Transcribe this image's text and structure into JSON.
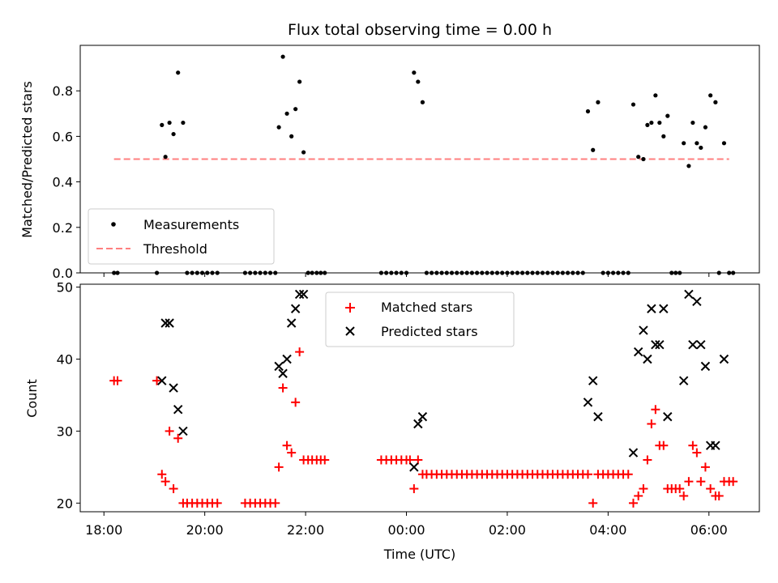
{
  "colors": {
    "measurement": "#000000",
    "threshold": "#ff7f7f",
    "matched": "#ff0000",
    "predicted": "#000000",
    "axis": "#000000"
  },
  "chart_data": [
    {
      "type": "scatter",
      "title": "Flux total observing time = 0.00 h",
      "xlabel": "",
      "ylabel": "Matched/Predicted stars",
      "x_unit": "hours since 18:00 UTC",
      "xlim": [
        -0.47,
        13.0
      ],
      "ylim": [
        0.0,
        1.0
      ],
      "yticks": [
        0.0,
        0.2,
        0.4,
        0.6,
        0.8
      ],
      "ytick_labels": [
        "0.0",
        "0.2",
        "0.4",
        "0.6",
        "0.8"
      ],
      "grid": false,
      "legend": {
        "position": "lower-left",
        "entries": [
          {
            "label": "Measurements",
            "marker": "dot"
          },
          {
            "label": "Threshold",
            "marker": "dashed-line"
          }
        ]
      },
      "threshold": {
        "y": 0.5,
        "x_range": [
          0.2,
          12.4
        ]
      },
      "series": [
        {
          "name": "Measurements",
          "points": [
            [
              0.2,
              0.0
            ],
            [
              0.27,
              0.0
            ],
            [
              1.05,
              0.0
            ],
            [
              1.15,
              0.65
            ],
            [
              1.22,
              0.51
            ],
            [
              1.3,
              0.66
            ],
            [
              1.38,
              0.61
            ],
            [
              1.47,
              0.88
            ],
            [
              1.57,
              0.66
            ],
            [
              1.65,
              0.0
            ],
            [
              1.75,
              0.0
            ],
            [
              1.85,
              0.0
            ],
            [
              1.95,
              0.0
            ],
            [
              2.05,
              0.0
            ],
            [
              2.15,
              0.0
            ],
            [
              2.25,
              0.0
            ],
            [
              2.8,
              0.0
            ],
            [
              2.9,
              0.0
            ],
            [
              3.0,
              0.0
            ],
            [
              3.1,
              0.0
            ],
            [
              3.2,
              0.0
            ],
            [
              3.3,
              0.0
            ],
            [
              3.4,
              0.0
            ],
            [
              3.47,
              0.64
            ],
            [
              3.55,
              0.95
            ],
            [
              3.63,
              0.7
            ],
            [
              3.72,
              0.6
            ],
            [
              3.8,
              0.72
            ],
            [
              3.88,
              0.84
            ],
            [
              3.96,
              0.53
            ],
            [
              4.05,
              0.0
            ],
            [
              4.13,
              0.0
            ],
            [
              4.22,
              0.0
            ],
            [
              4.3,
              0.0
            ],
            [
              4.38,
              0.0
            ],
            [
              5.5,
              0.0
            ],
            [
              5.6,
              0.0
            ],
            [
              5.7,
              0.0
            ],
            [
              5.8,
              0.0
            ],
            [
              5.9,
              0.0
            ],
            [
              6.0,
              0.0
            ],
            [
              6.15,
              0.88
            ],
            [
              6.23,
              0.84
            ],
            [
              6.32,
              0.75
            ],
            [
              6.4,
              0.0
            ],
            [
              6.5,
              0.0
            ],
            [
              6.6,
              0.0
            ],
            [
              6.7,
              0.0
            ],
            [
              6.8,
              0.0
            ],
            [
              6.9,
              0.0
            ],
            [
              7.0,
              0.0
            ],
            [
              7.1,
              0.0
            ],
            [
              7.2,
              0.0
            ],
            [
              7.3,
              0.0
            ],
            [
              7.4,
              0.0
            ],
            [
              7.5,
              0.0
            ],
            [
              7.6,
              0.0
            ],
            [
              7.7,
              0.0
            ],
            [
              7.8,
              0.0
            ],
            [
              7.9,
              0.0
            ],
            [
              8.0,
              0.0
            ],
            [
              8.1,
              0.0
            ],
            [
              8.2,
              0.0
            ],
            [
              8.3,
              0.0
            ],
            [
              8.4,
              0.0
            ],
            [
              8.5,
              0.0
            ],
            [
              8.6,
              0.0
            ],
            [
              8.7,
              0.0
            ],
            [
              8.8,
              0.0
            ],
            [
              8.9,
              0.0
            ],
            [
              9.0,
              0.0
            ],
            [
              9.1,
              0.0
            ],
            [
              9.2,
              0.0
            ],
            [
              9.3,
              0.0
            ],
            [
              9.4,
              0.0
            ],
            [
              9.5,
              0.0
            ],
            [
              9.6,
              0.71
            ],
            [
              9.7,
              0.54
            ],
            [
              9.8,
              0.75
            ],
            [
              9.9,
              0.0
            ],
            [
              10.0,
              0.0
            ],
            [
              10.1,
              0.0
            ],
            [
              10.2,
              0.0
            ],
            [
              10.3,
              0.0
            ],
            [
              10.4,
              0.0
            ],
            [
              10.5,
              0.74
            ],
            [
              10.6,
              0.51
            ],
            [
              10.7,
              0.5
            ],
            [
              10.78,
              0.65
            ],
            [
              10.86,
              0.66
            ],
            [
              10.94,
              0.78
            ],
            [
              11.02,
              0.66
            ],
            [
              11.1,
              0.6
            ],
            [
              11.18,
              0.69
            ],
            [
              11.26,
              0.0
            ],
            [
              11.34,
              0.0
            ],
            [
              11.42,
              0.0
            ],
            [
              11.5,
              0.57
            ],
            [
              11.6,
              0.47
            ],
            [
              11.68,
              0.66
            ],
            [
              11.76,
              0.57
            ],
            [
              11.84,
              0.55
            ],
            [
              11.93,
              0.64
            ],
            [
              12.03,
              0.78
            ],
            [
              12.13,
              0.75
            ],
            [
              12.2,
              0.0
            ],
            [
              12.3,
              0.57
            ],
            [
              12.4,
              0.0
            ],
            [
              12.48,
              0.0
            ]
          ]
        }
      ]
    },
    {
      "type": "scatter",
      "title": "",
      "xlabel": "Time (UTC)",
      "ylabel": "Count",
      "x_unit": "hours since 18:00 UTC",
      "xlim": [
        -0.47,
        13.0
      ],
      "ylim": [
        18.8,
        50.4
      ],
      "yticks": [
        20,
        30,
        40,
        50
      ],
      "ytick_labels": [
        "20",
        "30",
        "40",
        "50"
      ],
      "xticks": [
        0,
        2,
        4,
        6,
        8,
        10,
        12
      ],
      "xtick_labels": [
        "18:00",
        "20:00",
        "22:00",
        "00:00",
        "02:00",
        "04:00",
        "06:00"
      ],
      "grid": false,
      "legend": {
        "position": "upper-center",
        "entries": [
          {
            "label": "Matched stars",
            "marker": "plus"
          },
          {
            "label": "Predicted stars",
            "marker": "x"
          }
        ]
      },
      "series": [
        {
          "name": "Matched stars",
          "points": [
            [
              0.2,
              37
            ],
            [
              0.27,
              37
            ],
            [
              1.05,
              37
            ],
            [
              1.15,
              24
            ],
            [
              1.22,
              23
            ],
            [
              1.3,
              30
            ],
            [
              1.38,
              22
            ],
            [
              1.47,
              29
            ],
            [
              1.57,
              20
            ],
            [
              1.65,
              20
            ],
            [
              1.75,
              20
            ],
            [
              1.85,
              20
            ],
            [
              1.95,
              20
            ],
            [
              2.05,
              20
            ],
            [
              2.15,
              20
            ],
            [
              2.25,
              20
            ],
            [
              2.8,
              20
            ],
            [
              2.9,
              20
            ],
            [
              3.0,
              20
            ],
            [
              3.1,
              20
            ],
            [
              3.2,
              20
            ],
            [
              3.3,
              20
            ],
            [
              3.4,
              20
            ],
            [
              3.47,
              25
            ],
            [
              3.55,
              36
            ],
            [
              3.63,
              28
            ],
            [
              3.72,
              27
            ],
            [
              3.8,
              34
            ],
            [
              3.88,
              41
            ],
            [
              3.96,
              26
            ],
            [
              4.05,
              26
            ],
            [
              4.13,
              26
            ],
            [
              4.22,
              26
            ],
            [
              4.3,
              26
            ],
            [
              4.38,
              26
            ],
            [
              5.5,
              26
            ],
            [
              5.6,
              26
            ],
            [
              5.7,
              26
            ],
            [
              5.8,
              26
            ],
            [
              5.9,
              26
            ],
            [
              6.0,
              26
            ],
            [
              6.07,
              26
            ],
            [
              6.15,
              22
            ],
            [
              6.23,
              26
            ],
            [
              6.32,
              24
            ],
            [
              6.4,
              24
            ],
            [
              6.5,
              24
            ],
            [
              6.6,
              24
            ],
            [
              6.7,
              24
            ],
            [
              6.8,
              24
            ],
            [
              6.9,
              24
            ],
            [
              7.0,
              24
            ],
            [
              7.1,
              24
            ],
            [
              7.2,
              24
            ],
            [
              7.3,
              24
            ],
            [
              7.4,
              24
            ],
            [
              7.5,
              24
            ],
            [
              7.6,
              24
            ],
            [
              7.7,
              24
            ],
            [
              7.8,
              24
            ],
            [
              7.9,
              24
            ],
            [
              8.0,
              24
            ],
            [
              8.1,
              24
            ],
            [
              8.2,
              24
            ],
            [
              8.3,
              24
            ],
            [
              8.4,
              24
            ],
            [
              8.5,
              24
            ],
            [
              8.6,
              24
            ],
            [
              8.7,
              24
            ],
            [
              8.8,
              24
            ],
            [
              8.9,
              24
            ],
            [
              9.0,
              24
            ],
            [
              9.1,
              24
            ],
            [
              9.2,
              24
            ],
            [
              9.3,
              24
            ],
            [
              9.4,
              24
            ],
            [
              9.5,
              24
            ],
            [
              9.6,
              24
            ],
            [
              9.7,
              20
            ],
            [
              9.8,
              24
            ],
            [
              9.9,
              24
            ],
            [
              10.0,
              24
            ],
            [
              10.1,
              24
            ],
            [
              10.2,
              24
            ],
            [
              10.3,
              24
            ],
            [
              10.4,
              24
            ],
            [
              10.5,
              20
            ],
            [
              10.6,
              21
            ],
            [
              10.7,
              22
            ],
            [
              10.78,
              26
            ],
            [
              10.86,
              31
            ],
            [
              10.94,
              33
            ],
            [
              11.02,
              28
            ],
            [
              11.1,
              28
            ],
            [
              11.18,
              22
            ],
            [
              11.26,
              22
            ],
            [
              11.34,
              22
            ],
            [
              11.42,
              22
            ],
            [
              11.5,
              21
            ],
            [
              11.6,
              23
            ],
            [
              11.68,
              28
            ],
            [
              11.76,
              27
            ],
            [
              11.84,
              23
            ],
            [
              11.93,
              25
            ],
            [
              12.03,
              22
            ],
            [
              12.13,
              21
            ],
            [
              12.2,
              21
            ],
            [
              12.3,
              23
            ],
            [
              12.4,
              23
            ],
            [
              12.48,
              23
            ]
          ]
        },
        {
          "name": "Predicted stars",
          "points": [
            [
              1.15,
              37
            ],
            [
              1.22,
              45
            ],
            [
              1.3,
              45
            ],
            [
              1.38,
              36
            ],
            [
              1.47,
              33
            ],
            [
              1.57,
              30
            ],
            [
              3.47,
              39
            ],
            [
              3.55,
              38
            ],
            [
              3.63,
              40
            ],
            [
              3.72,
              45
            ],
            [
              3.8,
              47
            ],
            [
              3.88,
              49
            ],
            [
              3.96,
              49
            ],
            [
              6.15,
              25
            ],
            [
              6.23,
              31
            ],
            [
              6.32,
              32
            ],
            [
              9.6,
              34
            ],
            [
              9.7,
              37
            ],
            [
              9.8,
              32
            ],
            [
              10.5,
              27
            ],
            [
              10.6,
              41
            ],
            [
              10.7,
              44
            ],
            [
              10.78,
              40
            ],
            [
              10.86,
              47
            ],
            [
              10.94,
              42
            ],
            [
              11.02,
              42
            ],
            [
              11.1,
              47
            ],
            [
              11.18,
              32
            ],
            [
              11.5,
              37
            ],
            [
              11.6,
              49
            ],
            [
              11.68,
              42
            ],
            [
              11.76,
              48
            ],
            [
              11.84,
              42
            ],
            [
              11.93,
              39
            ],
            [
              12.03,
              28
            ],
            [
              12.13,
              28
            ],
            [
              12.3,
              40
            ]
          ]
        }
      ]
    }
  ]
}
